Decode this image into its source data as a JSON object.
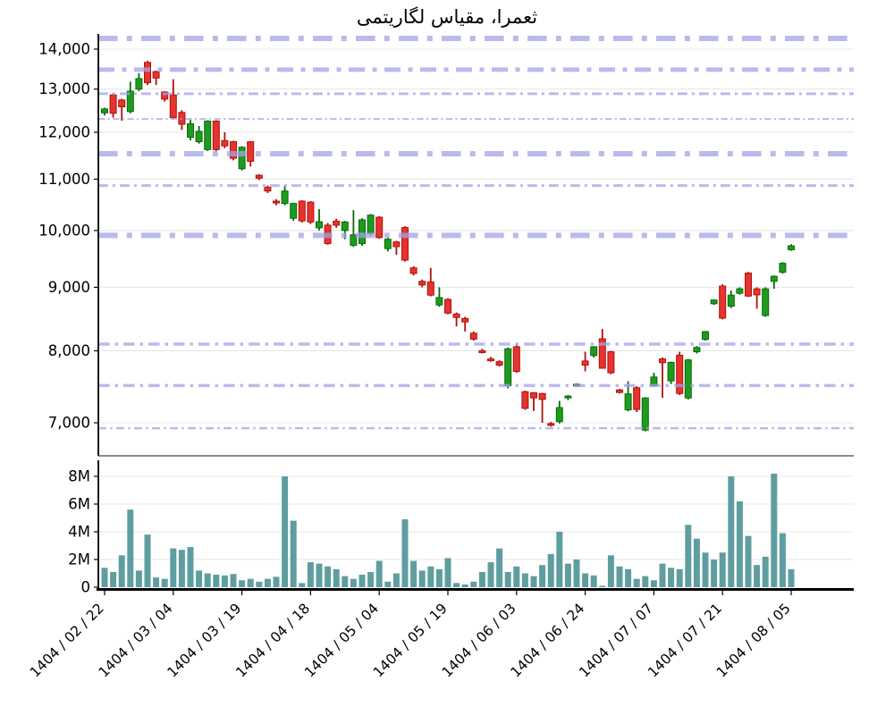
{
  "title": {
    "text": "ثعمرا، مقیاس لگاریتمی",
    "color": "#00008b"
  },
  "style": {
    "up_color": "#1e9b1e",
    "up_edge": "#0a6b0a",
    "down_color": "#e5342e",
    "down_edge": "#b01010",
    "volume_color": "#5f9ea0",
    "sr_line_color": "#a3a3e8",
    "grid_color": "#e7e7e7",
    "axis_color": "#000000",
    "background": "#ffffff"
  },
  "chart_data": [
    {
      "type": "candlestick",
      "title": "ثعمرا، مقیاس لگاریتمی",
      "yscale": "log",
      "ylim": [
        6800,
        14400
      ],
      "yticks": [
        14000,
        13000,
        12000,
        11000,
        10000,
        9000,
        8000,
        7000
      ],
      "x_tick_labels": [
        "1404 / 02 / 22",
        "1404 / 03 / 04",
        "1404 / 03 / 19",
        "1404 / 04 / 18",
        "1404 / 05 / 04",
        "1404 / 05 / 19",
        "1404 / 06 / 03",
        "1404 / 06 / 24",
        "1404 / 07 / 07",
        "1404 / 07 / 21",
        "1404 / 08 / 05"
      ],
      "x_tick_candle_indices": [
        0,
        8,
        16,
        24,
        32,
        40,
        48,
        56,
        64,
        72,
        80
      ],
      "support_resistance_levels": [
        {
          "price": 14280,
          "line_width": 6
        },
        {
          "price": 13480,
          "line_width": 5
        },
        {
          "price": 12890,
          "line_width": 3
        },
        {
          "price": 12300,
          "line_width": 2
        },
        {
          "price": 11530,
          "line_width": 6
        },
        {
          "price": 10870,
          "line_width": 3
        },
        {
          "price": 9910,
          "line_width": 6
        },
        {
          "price": 8100,
          "line_width": 3.5
        },
        {
          "price": 7500,
          "line_width": 3.5
        },
        {
          "price": 6930,
          "line_width": 2.5
        }
      ],
      "ohlc": [
        [
          12440,
          12560,
          12380,
          12530
        ],
        [
          12860,
          12890,
          12330,
          12430
        ],
        [
          12740,
          12770,
          12260,
          12580
        ],
        [
          12470,
          13180,
          12430,
          12950
        ],
        [
          13000,
          13390,
          12950,
          13255
        ],
        [
          13660,
          13700,
          13100,
          13155
        ],
        [
          13430,
          13450,
          13100,
          13270
        ],
        [
          12930,
          12950,
          12700,
          12760
        ],
        [
          12860,
          13240,
          12300,
          12330
        ],
        [
          12450,
          12500,
          12050,
          12180
        ],
        [
          11890,
          12280,
          11820,
          12190
        ],
        [
          11790,
          12140,
          11750,
          12020
        ],
        [
          11620,
          12270,
          11590,
          12250
        ],
        [
          12250,
          12270,
          11590,
          11620
        ],
        [
          11815,
          12000,
          11650,
          11700
        ],
        [
          11790,
          11810,
          11390,
          11435
        ],
        [
          11215,
          11690,
          11180,
          11670
        ],
        [
          11790,
          11800,
          11260,
          11370
        ],
        [
          11080,
          11100,
          10980,
          11020
        ],
        [
          10835,
          10870,
          10720,
          10760
        ],
        [
          10560,
          10600,
          10480,
          10540
        ],
        [
          10515,
          10870,
          10480,
          10760
        ],
        [
          10230,
          10530,
          10180,
          10515
        ],
        [
          10560,
          10580,
          10150,
          10180
        ],
        [
          10540,
          10560,
          10120,
          10160
        ],
        [
          10050,
          10405,
          10000,
          10165
        ],
        [
          10100,
          10140,
          9740,
          9760
        ],
        [
          10175,
          10220,
          10050,
          10100
        ],
        [
          10000,
          10180,
          9840,
          10160
        ],
        [
          9730,
          10385,
          9700,
          9920
        ],
        [
          9760,
          10230,
          9720,
          10200
        ],
        [
          9945,
          10310,
          9900,
          10290
        ],
        [
          10250,
          10270,
          9850,
          9870
        ],
        [
          9670,
          9870,
          9620,
          9840
        ],
        [
          9790,
          9810,
          9560,
          9705
        ],
        [
          10055,
          10080,
          9440,
          9465
        ],
        [
          9330,
          9360,
          9200,
          9235
        ],
        [
          9100,
          9130,
          9000,
          9040
        ],
        [
          9090,
          9330,
          8850,
          8870
        ],
        [
          8710,
          9000,
          8680,
          8830
        ],
        [
          8800,
          8820,
          8560,
          8580
        ],
        [
          8565,
          8590,
          8370,
          8510
        ],
        [
          8495,
          8520,
          8290,
          8440
        ],
        [
          8265,
          8290,
          8150,
          8175
        ],
        [
          8000,
          8030,
          7960,
          7990
        ],
        [
          7880,
          7910,
          7840,
          7860
        ],
        [
          7840,
          7860,
          7770,
          7790
        ],
        [
          7500,
          8050,
          7460,
          8030
        ],
        [
          8060,
          8090,
          7680,
          7700
        ],
        [
          7415,
          7430,
          7170,
          7190
        ],
        [
          7400,
          7410,
          7155,
          7330
        ],
        [
          7390,
          7400,
          7000,
          7310
        ],
        [
          6990,
          7010,
          6950,
          6975
        ],
        [
          7015,
          7290,
          6990,
          7200
        ],
        [
          7340,
          7370,
          7300,
          7355
        ],
        [
          7500,
          7530,
          7480,
          7520
        ],
        [
          7850,
          7985,
          7700,
          7790
        ],
        [
          7930,
          8070,
          7900,
          8060
        ],
        [
          8180,
          8330,
          7740,
          7745
        ],
        [
          7985,
          8000,
          7660,
          7680
        ],
        [
          7440,
          7455,
          7390,
          7405
        ],
        [
          7170,
          7560,
          7150,
          7385
        ],
        [
          7470,
          7490,
          7140,
          7175
        ],
        [
          6905,
          7340,
          6890,
          7330
        ],
        [
          7500,
          7680,
          7480,
          7620
        ],
        [
          7880,
          7900,
          7330,
          7825
        ],
        [
          7565,
          7840,
          7520,
          7830
        ],
        [
          7935,
          7985,
          7370,
          7390
        ],
        [
          7330,
          7880,
          7310,
          7865
        ],
        [
          7985,
          8070,
          7960,
          8050
        ],
        [
          8170,
          8300,
          8150,
          8290
        ],
        [
          8730,
          8800,
          8710,
          8790
        ],
        [
          9020,
          9050,
          8480,
          8500
        ],
        [
          8690,
          8945,
          8660,
          8870
        ],
        [
          8900,
          9000,
          8880,
          8975
        ],
        [
          9240,
          9260,
          8840,
          8855
        ],
        [
          8975,
          9000,
          8650,
          8875
        ],
        [
          8540,
          9000,
          8520,
          8975
        ],
        [
          9100,
          9200,
          8975,
          9185
        ],
        [
          9255,
          9430,
          9230,
          9410
        ],
        [
          9650,
          9750,
          9630,
          9720
        ]
      ]
    },
    {
      "type": "bar",
      "name": "volume",
      "unit": "M",
      "ylim": [
        0,
        8.6
      ],
      "yticks": [
        {
          "v": 0,
          "label": "0"
        },
        {
          "v": 2,
          "label": "2M"
        },
        {
          "v": 4,
          "label": "4M"
        },
        {
          "v": 6,
          "label": "6M"
        },
        {
          "v": 8,
          "label": "8M"
        }
      ],
      "values": [
        1.4,
        1.1,
        2.3,
        5.6,
        1.2,
        3.8,
        0.7,
        0.6,
        2.8,
        2.7,
        2.9,
        1.2,
        1.0,
        0.9,
        0.85,
        0.95,
        0.5,
        0.6,
        0.4,
        0.6,
        0.75,
        8.0,
        4.8,
        0.3,
        1.8,
        1.7,
        1.5,
        1.3,
        0.8,
        0.6,
        0.9,
        1.1,
        1.9,
        0.4,
        1.0,
        4.9,
        1.9,
        1.2,
        1.5,
        1.3,
        2.1,
        0.3,
        0.2,
        0.4,
        1.1,
        1.8,
        2.8,
        1.1,
        1.5,
        1.0,
        0.8,
        1.6,
        2.4,
        4.0,
        1.7,
        2.0,
        1.0,
        0.85,
        0.1,
        2.3,
        1.5,
        1.3,
        0.6,
        0.8,
        0.5,
        1.7,
        1.4,
        1.3,
        4.5,
        3.5,
        2.5,
        2.0,
        2.5,
        8.0,
        6.2,
        3.7,
        1.6,
        2.2,
        8.2,
        3.9,
        1.3
      ]
    }
  ]
}
